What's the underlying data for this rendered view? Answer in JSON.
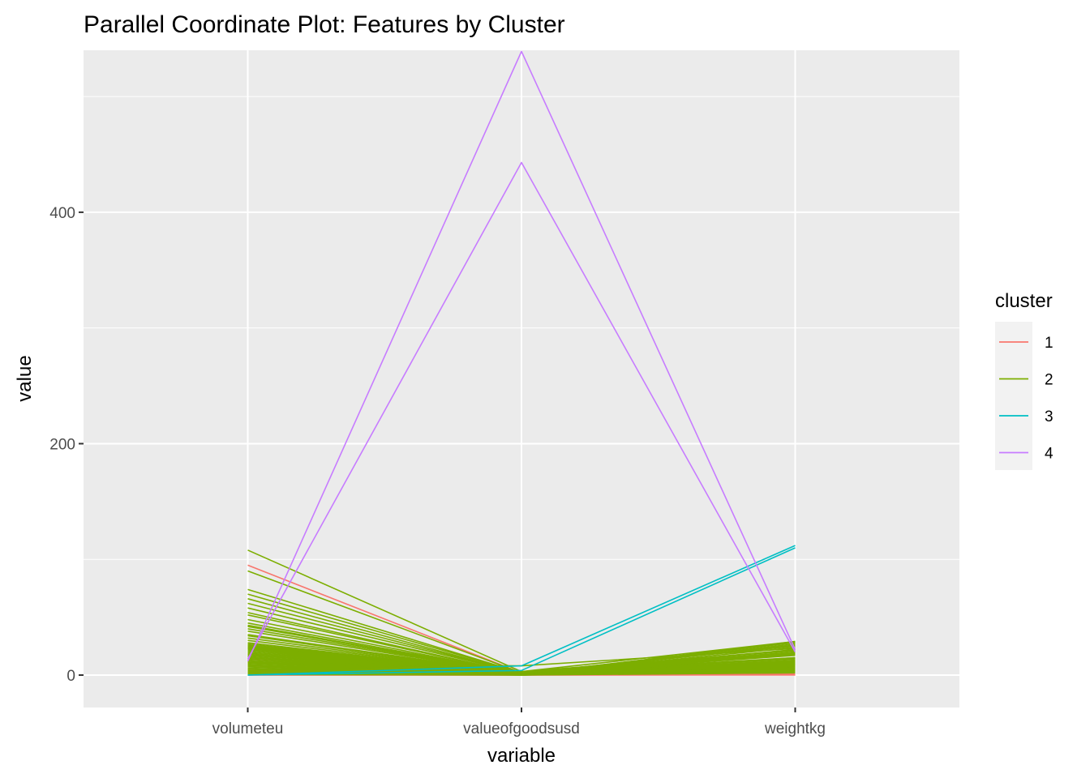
{
  "chart_data": {
    "type": "line",
    "subtype": "parallel-coordinates",
    "title": "Parallel Coordinate Plot: Features by Cluster",
    "xlabel": "variable",
    "ylabel": "value",
    "categories": [
      "volumeteu",
      "valueofgoodsusd",
      "weightkg"
    ],
    "ylim": [
      -28,
      540
    ],
    "yticks": [
      0,
      200,
      400
    ],
    "ytick_labels": [
      "0",
      "200",
      "400"
    ],
    "grid": true,
    "legend": {
      "title": "cluster",
      "placement": "right",
      "entries": [
        {
          "label": "1",
          "color": "#F8766D"
        },
        {
          "label": "2",
          "color": "#7CAE00"
        },
        {
          "label": "3",
          "color": "#00BFC4"
        },
        {
          "label": "4",
          "color": "#C77CFF"
        }
      ]
    },
    "series": [
      {
        "cluster": "1",
        "color": "#F8766D",
        "lines": [
          [
            95,
            2,
            1
          ],
          [
            14,
            1,
            7
          ],
          [
            11,
            1,
            5
          ],
          [
            8,
            0.5,
            4
          ],
          [
            5,
            0.5,
            2
          ],
          [
            3,
            0.5,
            1
          ],
          [
            1,
            0.2,
            0.5
          ],
          [
            0.5,
            0.1,
            0.2
          ],
          [
            0,
            0,
            0
          ],
          [
            0,
            0,
            8
          ]
        ]
      },
      {
        "cluster": "2",
        "color": "#7CAE00",
        "lines": [
          [
            108,
            3,
            29
          ],
          [
            90,
            2,
            25
          ],
          [
            74,
            2,
            20
          ],
          [
            70,
            2,
            18
          ],
          [
            66,
            1.5,
            15
          ],
          [
            62,
            1.5,
            14
          ],
          [
            58,
            1.5,
            12
          ],
          [
            54,
            1,
            10
          ],
          [
            52,
            1,
            10
          ],
          [
            48,
            1,
            8
          ],
          [
            45,
            1,
            7
          ],
          [
            43,
            1,
            6
          ],
          [
            42,
            1,
            5
          ],
          [
            40,
            1,
            4
          ],
          [
            38,
            1,
            3
          ],
          [
            35,
            1,
            28
          ],
          [
            34,
            0.8,
            22
          ],
          [
            32,
            0.8,
            18
          ],
          [
            30,
            0.8,
            14
          ],
          [
            28,
            0.8,
            12
          ],
          [
            27,
            0.6,
            11
          ],
          [
            26,
            0.6,
            9
          ],
          [
            25,
            0.6,
            8
          ],
          [
            24,
            0.6,
            7
          ],
          [
            23,
            0.5,
            6
          ],
          [
            22,
            0.5,
            5
          ],
          [
            21,
            0.5,
            4
          ],
          [
            20,
            0.5,
            3
          ],
          [
            19,
            0.5,
            2
          ],
          [
            18,
            0.4,
            29
          ],
          [
            17,
            0.4,
            27
          ],
          [
            16,
            0.4,
            26
          ],
          [
            15,
            0.4,
            24
          ],
          [
            14,
            0.3,
            22
          ],
          [
            13,
            0.3,
            20
          ],
          [
            12,
            0.3,
            19
          ],
          [
            11,
            0.3,
            17
          ],
          [
            10,
            0.2,
            15
          ],
          [
            9,
            0.2,
            13
          ],
          [
            8,
            0.2,
            12
          ],
          [
            7,
            0.2,
            11
          ],
          [
            6,
            0.2,
            10
          ],
          [
            5,
            0.1,
            9
          ],
          [
            4,
            0.1,
            8
          ],
          [
            3,
            0.1,
            6
          ],
          [
            2,
            0.1,
            5
          ],
          [
            1,
            0.1,
            3
          ],
          [
            0.5,
            0,
            2
          ],
          [
            24,
            3,
            21
          ],
          [
            10,
            8,
            23
          ]
        ]
      },
      {
        "cluster": "3",
        "color": "#00BFC4",
        "lines": [
          [
            0,
            8,
            112
          ],
          [
            0,
            4,
            110
          ]
        ]
      },
      {
        "cluster": "4",
        "color": "#C77CFF",
        "lines": [
          [
            12,
            539,
            22
          ],
          [
            14,
            443,
            20
          ]
        ]
      }
    ]
  }
}
